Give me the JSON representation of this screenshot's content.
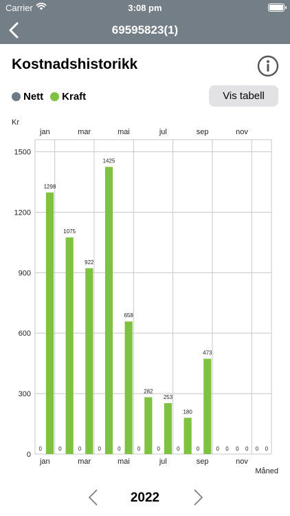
{
  "status": {
    "carrier": "Carrier",
    "time": "3:08 pm"
  },
  "header": {
    "title": "69595823(1)"
  },
  "page": {
    "heading": "Kostnadshistorikk",
    "table_button": "Vis tabell"
  },
  "legend": [
    {
      "label": "Nett",
      "color": "#6e7a86"
    },
    {
      "label": "Kraft",
      "color": "#7fc241"
    }
  ],
  "icons": {
    "back": "chevron-left-icon",
    "info": "info-circle-icon",
    "prev": "chevron-left-icon",
    "next": "chevron-right-icon"
  },
  "chart_data": {
    "type": "bar",
    "ylabel": "Kr",
    "xlabel": "Måned",
    "ylim": [
      0,
      1560
    ],
    "yticks": [
      0,
      300,
      600,
      900,
      1200,
      1500
    ],
    "month_labels": [
      "jan",
      "mar",
      "mai",
      "jul",
      "sep",
      "nov"
    ],
    "grid": true,
    "series": [
      {
        "name": "Nett",
        "color": "#6e7a86",
        "values": [
          0,
          0,
          0,
          0,
          0,
          0,
          0,
          0,
          0,
          0,
          0,
          0
        ]
      },
      {
        "name": "Kraft",
        "color": "#7fc241",
        "values": [
          1298,
          1075,
          922,
          1425,
          658,
          282,
          253,
          180,
          473,
          0,
          0,
          0
        ]
      }
    ]
  },
  "year_nav": {
    "year": "2022"
  }
}
